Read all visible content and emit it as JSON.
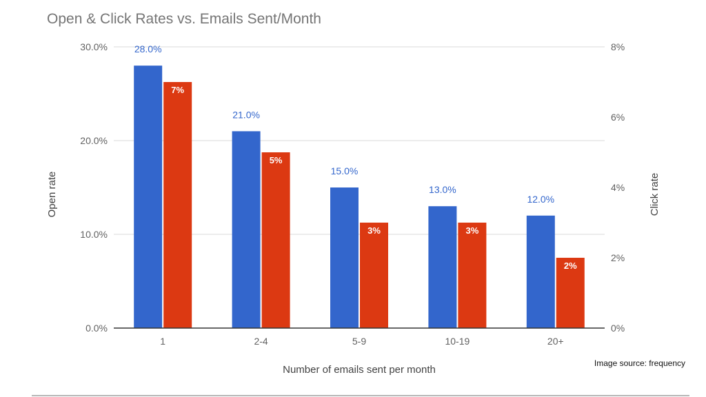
{
  "chart_data": {
    "type": "bar",
    "title": "Open & Click Rates vs. Emails Sent/Month",
    "xlabel": "Number of emails sent per month",
    "ylabel": "Open rate",
    "y2label": "Click rate",
    "categories": [
      "1",
      "2-4",
      "5-9",
      "10-19",
      "20+"
    ],
    "ylim": [
      0,
      30
    ],
    "y2lim": [
      0,
      8
    ],
    "yticks": [
      "0.0%",
      "10.0%",
      "20.0%",
      "30.0%"
    ],
    "y2ticks": [
      "0%",
      "2%",
      "4%",
      "6%",
      "8%"
    ],
    "grid": true,
    "series": [
      {
        "name": "Open rate",
        "axis": "left",
        "color": "#3366cc",
        "values": [
          28.0,
          21.0,
          15.0,
          13.0,
          12.0
        ],
        "labels": [
          "28.0%",
          "21.0%",
          "15.0%",
          "13.0%",
          "12.0%"
        ]
      },
      {
        "name": "Click rate",
        "axis": "right",
        "color": "#dc3912",
        "values": [
          7.0,
          5.0,
          3.0,
          3.0,
          2.0
        ],
        "labels": [
          "7%",
          "5%",
          "3%",
          "3%",
          "2%"
        ]
      }
    ]
  },
  "source_note": "Image source: frequency"
}
